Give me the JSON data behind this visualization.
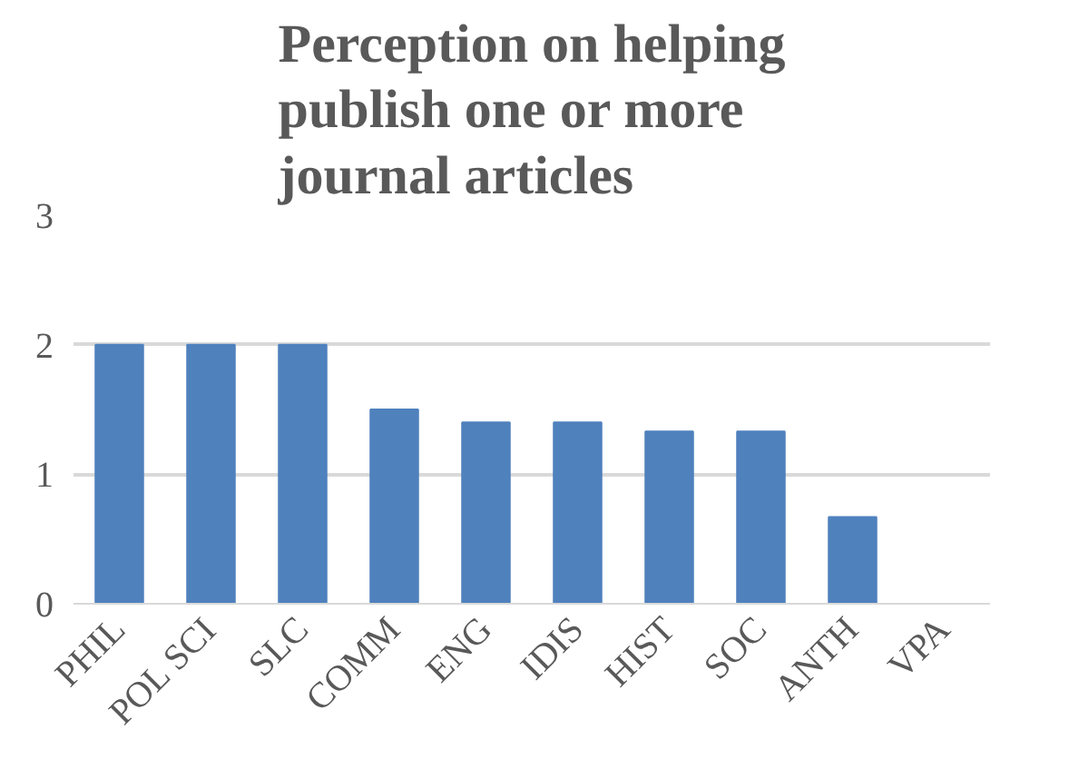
{
  "chart_data": {
    "type": "bar",
    "title": "Perception on helping publish one or more journal articles",
    "categories": [
      "PHIL",
      "POL SCI",
      "SLC",
      "COMM",
      "ENG",
      "IDIS",
      "HIST",
      "SOC",
      "ANTH",
      "VPA"
    ],
    "values": [
      2,
      2,
      2,
      1.5,
      1.4,
      1.4,
      1.33,
      1.33,
      0.67,
      0
    ],
    "color": "#4f81bd",
    "ylim": [
      0,
      3
    ],
    "yticks": [
      0,
      1,
      2,
      3
    ],
    "grid": "y"
  }
}
